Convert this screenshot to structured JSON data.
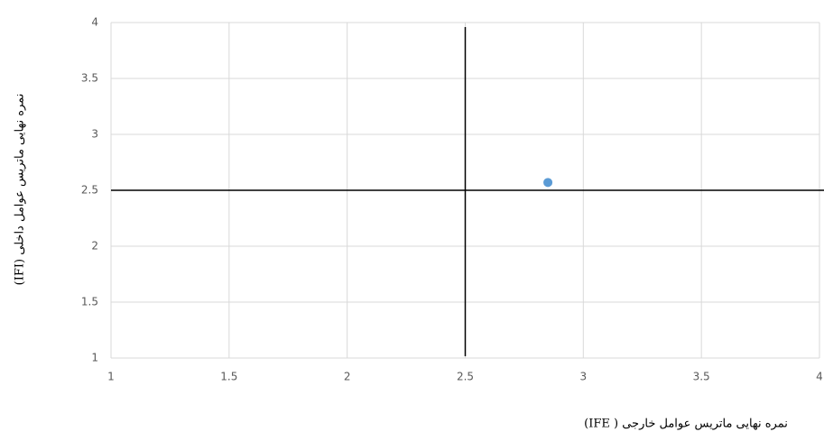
{
  "chart_data": {
    "type": "scatter",
    "x_label": "نمره نهایی ماتریس عوامل خارجی ( IFE)",
    "y_label": "نمره نهایی ماتریس عوامل داخلی (IFI)",
    "series": [
      {
        "color": "#5b9bd5",
        "x": [
          2.85
        ],
        "values": [
          2.57
        ]
      }
    ],
    "xlim": [
      1,
      4
    ],
    "xticks": [
      1,
      1.5,
      2,
      2.5,
      3,
      3.5,
      4
    ],
    "ylim": [
      1,
      4
    ],
    "yticks": [
      1,
      1.5,
      2,
      2.5,
      3,
      3.5,
      4
    ],
    "grid": true,
    "reference_lines": {
      "x": 2.5,
      "y": 2.5
    }
  }
}
